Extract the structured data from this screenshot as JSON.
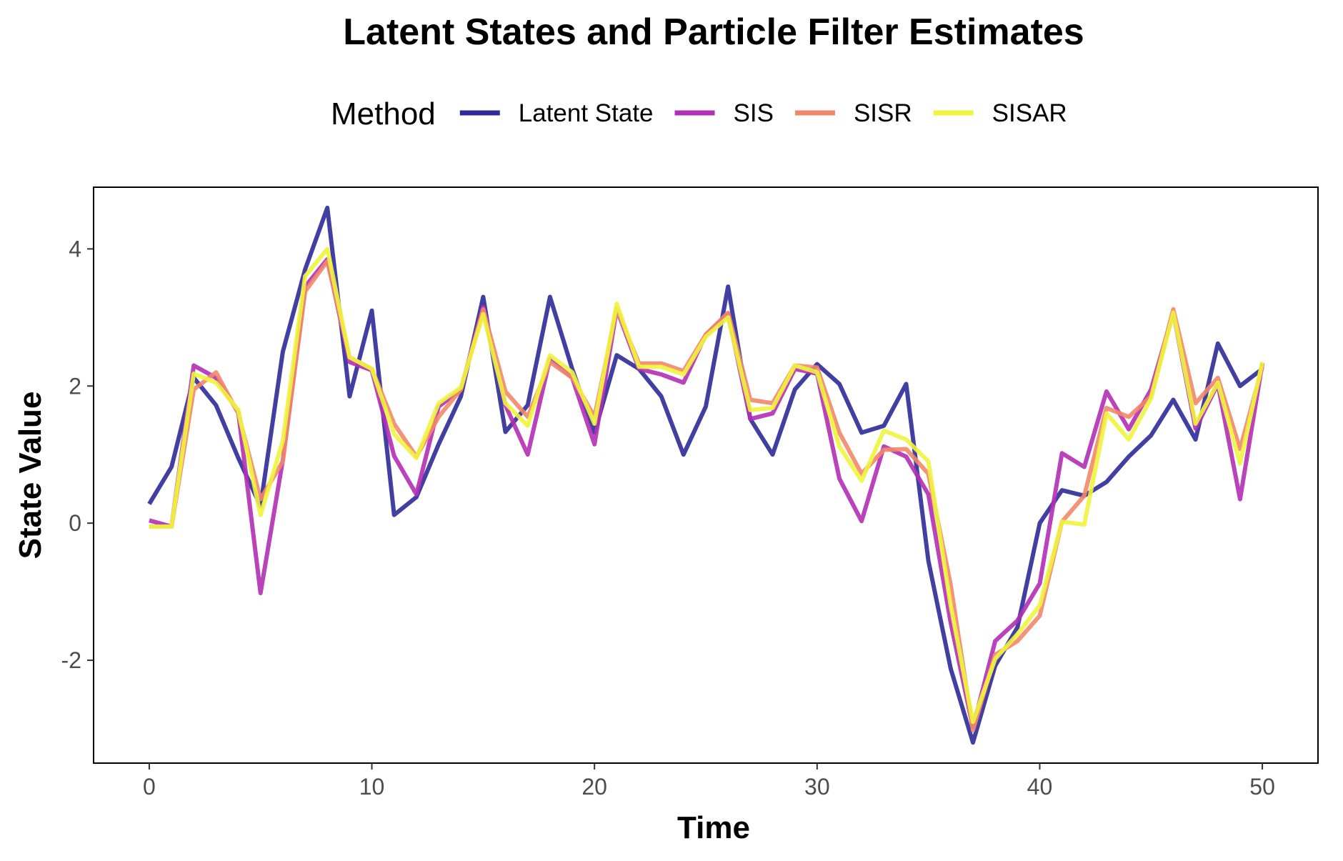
{
  "chart_data": {
    "type": "line",
    "title": "Latent States and Particle Filter Estimates",
    "xlabel": "Time",
    "ylabel": "State Value",
    "legend_title": "Method",
    "legend_position": "top",
    "xlim": [
      -2.5,
      52.5
    ],
    "ylim": [
      -3.5,
      4.9
    ],
    "x_ticks": [
      0,
      10,
      20,
      30,
      40,
      50
    ],
    "y_ticks": [
      -2,
      0,
      2,
      4
    ],
    "x_tick_labels": [
      "0",
      "10",
      "20",
      "30",
      "40",
      "50"
    ],
    "y_tick_labels": [
      "-2",
      "0",
      "2",
      "4"
    ],
    "grid": false,
    "x": [
      0,
      1,
      2,
      3,
      4,
      5,
      6,
      7,
      8,
      9,
      10,
      11,
      12,
      13,
      14,
      15,
      16,
      17,
      18,
      19,
      20,
      21,
      22,
      23,
      24,
      25,
      26,
      27,
      28,
      29,
      30,
      31,
      32,
      33,
      34,
      35,
      36,
      37,
      38,
      39,
      40,
      41,
      42,
      43,
      44,
      45,
      46,
      47,
      48,
      49,
      50
    ],
    "series": [
      {
        "name": "Latent State",
        "color": "#2E2A99",
        "values": [
          0.28,
          0.82,
          2.12,
          1.72,
          0.95,
          0.25,
          2.5,
          3.7,
          4.6,
          1.85,
          3.1,
          0.12,
          0.38,
          1.15,
          1.85,
          3.3,
          1.33,
          1.72,
          3.3,
          2.25,
          1.32,
          2.45,
          2.25,
          1.85,
          1.0,
          1.7,
          3.45,
          1.52,
          1.0,
          1.95,
          2.32,
          2.03,
          1.32,
          1.42,
          2.03,
          -0.55,
          -2.12,
          -3.2,
          -2.08,
          -1.52,
          0.0,
          0.48,
          0.4,
          0.6,
          0.97,
          1.28,
          1.8,
          1.22,
          2.62,
          2.0,
          2.25
        ]
      },
      {
        "name": "SIS",
        "color": "#B32FB5",
        "values": [
          0.04,
          -0.05,
          2.3,
          2.12,
          1.62,
          -1.02,
          0.92,
          3.45,
          3.85,
          2.35,
          2.23,
          0.98,
          0.42,
          1.7,
          1.95,
          3.15,
          1.72,
          1.0,
          2.4,
          2.12,
          1.15,
          3.12,
          2.25,
          2.17,
          2.05,
          2.75,
          3.05,
          1.52,
          1.6,
          2.25,
          2.18,
          0.65,
          0.03,
          1.12,
          0.97,
          0.42,
          -1.45,
          -2.98,
          -1.72,
          -1.42,
          -0.88,
          1.02,
          0.82,
          1.92,
          1.37,
          1.95,
          3.07,
          1.38,
          2.03,
          0.35,
          2.33
        ]
      },
      {
        "name": "SISR",
        "color": "#F2876A",
        "values": [
          -0.05,
          -0.05,
          1.95,
          2.2,
          1.6,
          0.35,
          0.9,
          3.38,
          3.82,
          2.42,
          2.25,
          1.45,
          0.97,
          1.55,
          1.95,
          3.12,
          1.92,
          1.55,
          2.35,
          2.12,
          1.55,
          3.12,
          2.33,
          2.33,
          2.22,
          2.75,
          3.07,
          1.8,
          1.75,
          2.3,
          2.27,
          1.32,
          0.72,
          1.07,
          1.08,
          0.72,
          -0.9,
          -3.02,
          -1.92,
          -1.72,
          -1.35,
          0.02,
          0.4,
          1.68,
          1.55,
          1.85,
          3.12,
          1.75,
          2.12,
          1.08,
          2.28
        ]
      },
      {
        "name": "SISAR",
        "color": "#F0F43E",
        "values": [
          -0.05,
          -0.05,
          2.18,
          2.05,
          1.65,
          0.12,
          1.2,
          3.6,
          4.0,
          2.42,
          2.25,
          1.3,
          0.95,
          1.75,
          1.98,
          3.05,
          1.75,
          1.42,
          2.45,
          2.2,
          1.45,
          3.2,
          2.28,
          2.28,
          2.17,
          2.72,
          3.0,
          1.65,
          1.68,
          2.3,
          2.2,
          1.12,
          0.62,
          1.35,
          1.22,
          0.9,
          -1.2,
          -2.9,
          -1.98,
          -1.62,
          -1.2,
          0.02,
          -0.02,
          1.6,
          1.22,
          1.82,
          3.07,
          1.45,
          2.05,
          0.87,
          2.35
        ]
      }
    ]
  }
}
